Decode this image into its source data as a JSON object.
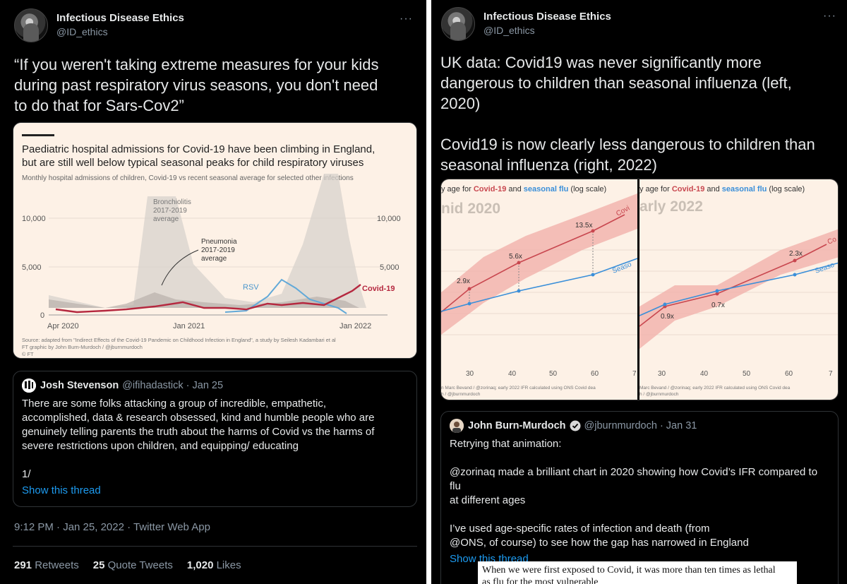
{
  "left": {
    "author": {
      "name": "Infectious Disease Ethics",
      "handle": "@ID_ethics"
    },
    "more_icon": "ellipsis-icon",
    "text_lines": [
      "“If you weren't taking extreme measures for your kids",
      "during past respiratory virus seasons, you don't need",
      "to do that for Sars-Cov2”"
    ],
    "chart": {
      "title_lines": [
        "Paediatric hospital admissions for Covid-19 have been climbing in England,",
        "but are still well below typical seasonal peaks for child respiratory viruses"
      ],
      "subtitle": "Monthly hospital admissions of children, Covid-19 vs recent seasonal average for selected other infections",
      "yticks": [
        "10,000",
        "5,000",
        "0"
      ],
      "xticks": [
        "Apr 2020",
        "Jan 2021",
        "Jan 2022"
      ],
      "labels": {
        "bronch": [
          "Bronchiolitis",
          "2017-2019",
          "average"
        ],
        "pneu": [
          "Pneumonia",
          "2017-2019",
          "average"
        ],
        "rsv": "RSV",
        "covid": "Covid-19"
      },
      "source_lines": [
        "Source: adapted from \"Indirect Effects of the Covid-19 Pandemic on Childhood Infection in England\", a study by Seilesh Kadambari et al",
        "FT graphic by John Burn-Murdoch / @jburnmurdoch",
        "© FT"
      ],
      "colors": {
        "covid": "#b5283f",
        "rsv": "#62a9d8",
        "area": "#d7d1cc"
      }
    },
    "quote": {
      "name": "Josh Stevenson",
      "handle": "@ifihadastick",
      "date": "· Jan 25",
      "text": "There are some folks attacking a group of incredible, empathetic,\naccomplished, data & research obsessed, kind and humble people who are\ngenuinely telling parents the truth about the harms of Covid vs the harms of\nsevere restrictions upon children, and equipping/ educating\n\n1/",
      "show_thread": "Show this thread"
    },
    "timestamp": "9:12 PM · Jan 25, 2022 · Twitter Web App",
    "stats": {
      "retweets_count": "291",
      "retweets_label": "Retweets",
      "quotes_count": "25",
      "quotes_label": "Quote Tweets",
      "likes_count": "1,020",
      "likes_label": "Likes"
    }
  },
  "right": {
    "author": {
      "name": "Infectious Disease Ethics",
      "handle": "@ID_ethics"
    },
    "more_icon": "ellipsis-icon",
    "text_lines": [
      "UK data: Covid19 was never significantly more",
      "dangerous to children than seasonal influenza (left,",
      "2020)",
      "",
      "Covid19 is now clearly less dangerous to children than",
      "seasonal influenza (right, 2022)"
    ],
    "charts": [
      {
        "header_pre": "y age for ",
        "covid_word": "Covid-19",
        "and_word": " and ",
        "flu_word": "seasonal flu",
        "header_post": " (log scale)",
        "year_label": "nid 2020",
        "ratios": [
          "2.9x",
          "5.6x",
          "13.5x"
        ],
        "covid_series_label": "Covi",
        "flu_series_label": "Seaso",
        "xticks": [
          "30",
          "40",
          "50",
          "60",
          "7"
        ],
        "source_lines": [
          "n Marc Bevand / @zorinaq; early 2022 IFR calculated using ONS Covid dea",
          "h / @jburnmurdoch"
        ]
      },
      {
        "header_pre": "y age for ",
        "covid_word": "Covid-19",
        "and_word": " and ",
        "flu_word": "seasonal flu",
        "header_post": " (log scale)",
        "year_label": "arly 2022",
        "ratios": [
          "0.9x",
          "0.7x",
          "2.3x"
        ],
        "covid_series_label": "Co",
        "flu_series_label": "Seaso",
        "xticks": [
          "30",
          "40",
          "50",
          "60",
          "7"
        ],
        "source_lines": [
          "Marc Bevand / @zorinaq; early 2022 IFR calculated using ONS Covid dea",
          "h / @jburnmurdoch"
        ]
      }
    ],
    "quote": {
      "name": "John Burn-Murdoch",
      "handle": "@jburnmurdoch",
      "date": "· Jan 31",
      "text": "Retrying that animation:\n\n@zorinaq made a brilliant chart in 2020 showing how Covid’s IFR compared to flu\nat different ages\n\nI’ve used age-specific rates of infection and death (from\n@ONS, of course) to see how the gap has narrowed in England",
      "show_thread": "Show this thread"
    },
    "article_lines": [
      "When we were first exposed to Covid, it was more than ten times as lethal",
      "as flu for the most vulnerable"
    ],
    "colors": {
      "covid": "#c8474f",
      "flu": "#3a8fd9",
      "band": "#f1b2ab"
    }
  }
}
